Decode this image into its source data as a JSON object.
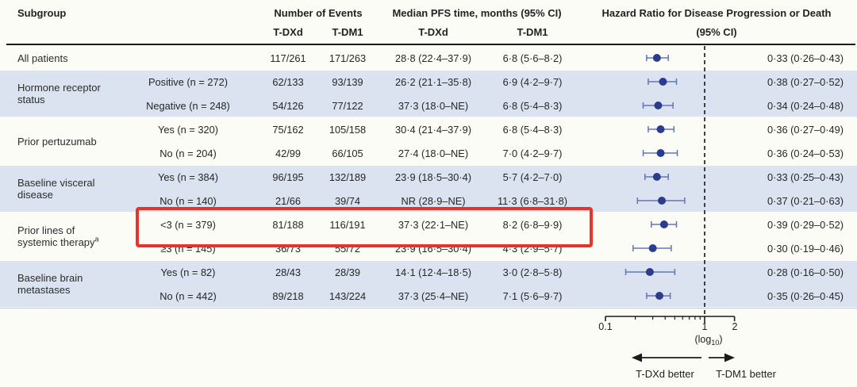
{
  "header": {
    "subgroup": "Subgroup",
    "events_label": "Number of Events",
    "events_col1": "T-DXd",
    "events_col2": "T-DM1",
    "pfs_label": "Median PFS time, months (95% CI)",
    "pfs_col1": "T-DXd",
    "pfs_col2": "T-DM1",
    "hr_label": "Hazard Ratio for Disease Progression or Death",
    "hr_label2": "(95% CI)"
  },
  "chart_data": {
    "type": "forest",
    "scale": "log10",
    "axis": {
      "range": [
        0.1,
        2
      ],
      "ticks": [
        0.1,
        1,
        2
      ],
      "tick_labels": [
        "0.1",
        "1",
        "2"
      ],
      "minor_ticks": [
        0.2,
        0.3,
        0.4,
        0.5,
        0.6,
        0.7,
        0.8,
        0.9
      ],
      "reference_line": 1,
      "scale_label": {
        "open": "(log",
        "sub": "10",
        "close": ")"
      }
    },
    "better_left": "T-DXd better",
    "better_right": "T-DM1 better",
    "groups": [
      {
        "label_lines": [
          "All patients"
        ],
        "shaded": false,
        "rows": [
          {
            "value": "",
            "events_tdxd": "117/261",
            "events_tdm1": "171/263",
            "pfs_tdxd": "28·8 (22·4–37·9)",
            "pfs_tdm1": "6·8 (5·6–8·2)",
            "hr_label": "0·33 (0·26–0·43)",
            "hr": 0.33,
            "ci": [
              0.26,
              0.43
            ],
            "highlighted": false
          }
        ]
      },
      {
        "label_lines": [
          "Hormone receptor",
          "status"
        ],
        "shaded": true,
        "rows": [
          {
            "value": "Positive (n = 272)",
            "events_tdxd": "62/133",
            "events_tdm1": "93/139",
            "pfs_tdxd": "26·2 (21·1–35·8)",
            "pfs_tdm1": "6·9 (4·2–9·7)",
            "hr_label": "0·38 (0·27–0·52)",
            "hr": 0.38,
            "ci": [
              0.27,
              0.52
            ],
            "highlighted": false
          },
          {
            "value": "Negative (n = 248)",
            "events_tdxd": "54/126",
            "events_tdm1": "77/122",
            "pfs_tdxd": "37·3 (18·0–NE)",
            "pfs_tdm1": "6·8 (5·4–8·3)",
            "hr_label": "0·34 (0·24–0·48)",
            "hr": 0.34,
            "ci": [
              0.24,
              0.48
            ],
            "highlighted": false
          }
        ]
      },
      {
        "label_lines": [
          "Prior pertuzumab"
        ],
        "shaded": false,
        "rows": [
          {
            "value": "Yes (n = 320)",
            "events_tdxd": "75/162",
            "events_tdm1": "105/158",
            "pfs_tdxd": "30·4 (21·4–37·9)",
            "pfs_tdm1": "6·8 (5·4–8·3)",
            "hr_label": "0·36 (0·27–0·49)",
            "hr": 0.36,
            "ci": [
              0.27,
              0.49
            ],
            "highlighted": false
          },
          {
            "value": "No (n = 204)",
            "events_tdxd": "42/99",
            "events_tdm1": "66/105",
            "pfs_tdxd": "27·4 (18·0–NE)",
            "pfs_tdm1": "7·0 (4·2–9·7)",
            "hr_label": "0·36 (0·24–0·53)",
            "hr": 0.36,
            "ci": [
              0.24,
              0.53
            ],
            "highlighted": false
          }
        ]
      },
      {
        "label_lines": [
          "Baseline visceral",
          "disease"
        ],
        "shaded": true,
        "rows": [
          {
            "value": "Yes (n = 384)",
            "events_tdxd": "96/195",
            "events_tdm1": "132/189",
            "pfs_tdxd": "23·9 (18·5–30·4)",
            "pfs_tdm1": "5·7 (4·2–7·0)",
            "hr_label": "0·33 (0·25–0·43)",
            "hr": 0.33,
            "ci": [
              0.25,
              0.43
            ],
            "highlighted": false
          },
          {
            "value": "No (n = 140)",
            "events_tdxd": "21/66",
            "events_tdm1": "39/74",
            "pfs_tdxd": "NR (28·9–NE)",
            "pfs_tdm1": "11·3 (6·8–31·8)",
            "hr_label": "0·37 (0·21–0·63)",
            "hr": 0.37,
            "ci": [
              0.21,
              0.63
            ],
            "highlighted": false
          }
        ]
      },
      {
        "label_lines": [
          "Prior lines of",
          "systemic therapy"
        ],
        "label_sup": "a",
        "shaded": false,
        "rows": [
          {
            "value": "<3 (n = 379)",
            "events_tdxd": "81/188",
            "events_tdm1": "116/191",
            "pfs_tdxd": "37·3 (22·1–NE)",
            "pfs_tdm1": "8·2 (6·8–9·9)",
            "hr_label": "0·39 (0·29–0·52)",
            "hr": 0.39,
            "ci": [
              0.29,
              0.52
            ],
            "highlighted": true
          },
          {
            "value": "≥3 (n = 145)",
            "events_tdxd": "36/73",
            "events_tdm1": "55/72",
            "pfs_tdxd": "23·9 (16·5–30·4)",
            "pfs_tdm1": "4·3 (2·9–5·7)",
            "hr_label": "0·30 (0·19–0·46)",
            "hr": 0.3,
            "ci": [
              0.19,
              0.46
            ],
            "highlighted": false
          }
        ]
      },
      {
        "label_lines": [
          "Baseline brain",
          "metastases"
        ],
        "shaded": true,
        "rows": [
          {
            "value": "Yes (n = 82)",
            "events_tdxd": "28/43",
            "events_tdm1": "28/39",
            "pfs_tdxd": "14·1 (12·4–18·5)",
            "pfs_tdm1": "3·0 (2·8–5·8)",
            "hr_label": "0·28 (0·16–0·50)",
            "hr": 0.28,
            "ci": [
              0.16,
              0.5
            ],
            "highlighted": false
          },
          {
            "value": "No (n = 442)",
            "events_tdxd": "89/218",
            "events_tdm1": "143/224",
            "pfs_tdxd": "37·3 (25·4–NE)",
            "pfs_tdm1": "7·1 (5·6–9·7)",
            "hr_label": "0·35 (0·26–0·45)",
            "hr": 0.35,
            "ci": [
              0.26,
              0.45
            ],
            "highlighted": false
          }
        ]
      }
    ]
  },
  "colors": {
    "band": "#DAE3EF",
    "marker": "#2B3C8C",
    "whisker": "#6476B2",
    "highlight": "#E8332A",
    "rule": "#1b1b1b"
  }
}
